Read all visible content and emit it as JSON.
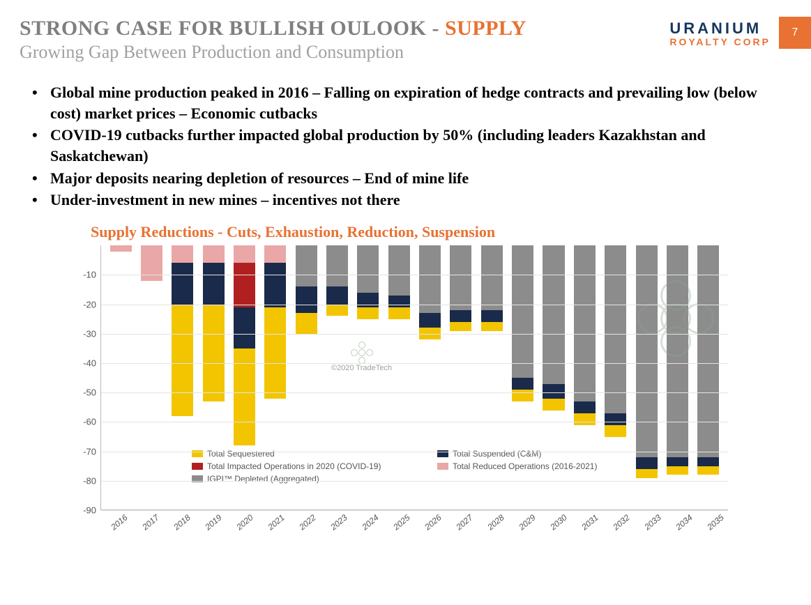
{
  "page_number": "7",
  "logo": {
    "line1": "URANIUM",
    "line2": "ROYALTY CORP"
  },
  "title_main_a": "STRONG CASE FOR BULLISH OULOOK - ",
  "title_main_b": "SUPPLY",
  "title_sub": "Growing Gap Between Production and Consumption",
  "bullets": [
    "Global mine production peaked in 2016 – Falling on expiration of hedge contracts and prevailing low (below cost) market prices – Economic cutbacks",
    "COVID-19 cutbacks further impacted global production by 50% (including leaders Kazakhstan and Saskatchewan)",
    "Major deposits nearing depletion of resources – End of mine life",
    "Under-investment in new mines – incentives not there"
  ],
  "chart": {
    "title": "Supply Reductions - Cuts, Exhaustion, Reduction, Suspension",
    "type": "stacked-bar",
    "watermark": "©2020 TradeTech",
    "y": {
      "min": -90,
      "max": 0,
      "step": 10
    },
    "categories": [
      "2016",
      "2017",
      "2018",
      "2019",
      "2020",
      "2021",
      "2022",
      "2023",
      "2024",
      "2025",
      "2026",
      "2027",
      "2028",
      "2029",
      "2030",
      "2031",
      "2032",
      "2033",
      "2034",
      "2035"
    ],
    "colors": {
      "sequestered": "#f2c500",
      "suspended": "#1a2a4a",
      "covid": "#b02020",
      "reduced": "#e9a7a7",
      "depleted": "#8c8c8c",
      "grid": "#e4e4e4",
      "axis": "#bbbbbb"
    },
    "legend": [
      {
        "key": "sequestered",
        "label": "Total Sequestered"
      },
      {
        "key": "suspended",
        "label": "Total Suspended (C&M)"
      },
      {
        "key": "covid",
        "label": "Total Impacted Operations in 2020 (COVID-19)"
      },
      {
        "key": "reduced",
        "label": "Total Reduced Operations (2016-2021)"
      },
      {
        "key": "depleted",
        "label": "IGPI™ Depleted (Aggregated)"
      }
    ],
    "series_comment": "values are negative magnitudes; stack order top→down = reduced, depleted, covid, suspended, sequestered",
    "data": [
      {
        "reduced": -2,
        "depleted": 0,
        "covid": 0,
        "suspended": 0,
        "sequestered": 0
      },
      {
        "reduced": -12,
        "depleted": 0,
        "covid": 0,
        "suspended": 0,
        "sequestered": 0
      },
      {
        "reduced": -6,
        "depleted": 0,
        "covid": 0,
        "suspended": -14,
        "sequestered": -38
      },
      {
        "reduced": -6,
        "depleted": 0,
        "covid": 0,
        "suspended": -14,
        "sequestered": -33
      },
      {
        "reduced": -6,
        "depleted": 0,
        "covid": -15,
        "suspended": -14,
        "sequestered": -33
      },
      {
        "reduced": -6,
        "depleted": 0,
        "covid": 0,
        "suspended": -15,
        "sequestered": -31
      },
      {
        "reduced": 0,
        "depleted": -14,
        "covid": 0,
        "suspended": -9,
        "sequestered": -7
      },
      {
        "reduced": 0,
        "depleted": -14,
        "covid": 0,
        "suspended": -6,
        "sequestered": -4
      },
      {
        "reduced": 0,
        "depleted": -16,
        "covid": 0,
        "suspended": -5,
        "sequestered": -4
      },
      {
        "reduced": 0,
        "depleted": -17,
        "covid": 0,
        "suspended": -4,
        "sequestered": -4
      },
      {
        "reduced": 0,
        "depleted": -23,
        "covid": 0,
        "suspended": -5,
        "sequestered": -4
      },
      {
        "reduced": 0,
        "depleted": -22,
        "covid": 0,
        "suspended": -4,
        "sequestered": -3
      },
      {
        "reduced": 0,
        "depleted": -22,
        "covid": 0,
        "suspended": -4,
        "sequestered": -3
      },
      {
        "reduced": 0,
        "depleted": -45,
        "covid": 0,
        "suspended": -4,
        "sequestered": -4
      },
      {
        "reduced": 0,
        "depleted": -47,
        "covid": 0,
        "suspended": -5,
        "sequestered": -4
      },
      {
        "reduced": 0,
        "depleted": -53,
        "covid": 0,
        "suspended": -4,
        "sequestered": -4
      },
      {
        "reduced": 0,
        "depleted": -57,
        "covid": 0,
        "suspended": -4,
        "sequestered": -4
      },
      {
        "reduced": 0,
        "depleted": -72,
        "covid": 0,
        "suspended": -4,
        "sequestered": -3
      },
      {
        "reduced": 0,
        "depleted": -72,
        "covid": 0,
        "suspended": -3,
        "sequestered": -3
      },
      {
        "reduced": 0,
        "depleted": -72,
        "covid": 0,
        "suspended": -3,
        "sequestered": -3
      }
    ]
  }
}
